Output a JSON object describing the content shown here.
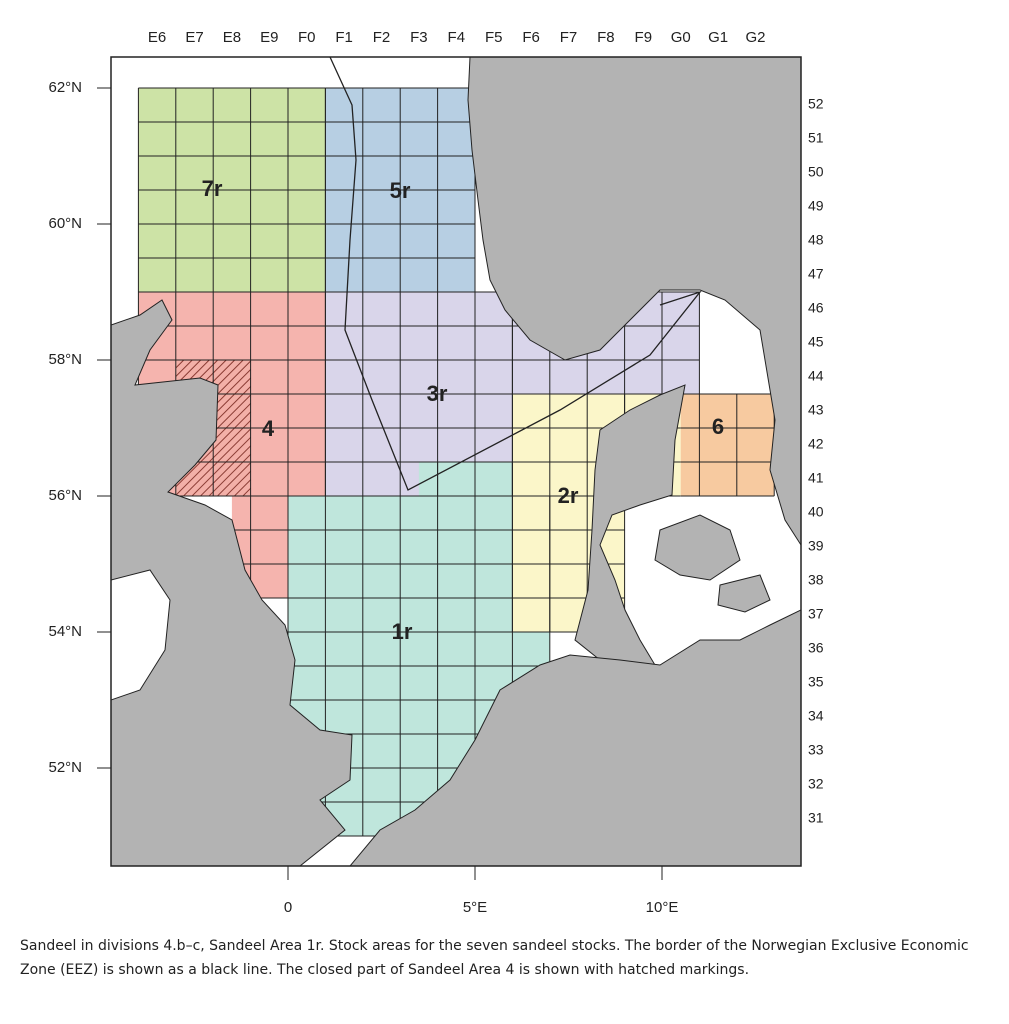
{
  "map": {
    "column_labels": [
      "E6",
      "E7",
      "E8",
      "E9",
      "F0",
      "F1",
      "F2",
      "F3",
      "F4",
      "F5",
      "F6",
      "F7",
      "F8",
      "F9",
      "G0",
      "G1",
      "G2"
    ],
    "row_labels": [
      "52",
      "51",
      "50",
      "49",
      "48",
      "47",
      "46",
      "45",
      "44",
      "43",
      "42",
      "41",
      "40",
      "39",
      "38",
      "37",
      "36",
      "35",
      "34",
      "33",
      "32",
      "31"
    ],
    "latitude_labels": [
      "62°N",
      "60°N",
      "58°N",
      "56°N",
      "54°N",
      "52°N"
    ],
    "longitude_labels": [
      "0",
      "5°E",
      "10°E"
    ],
    "area_labels": [
      "7r",
      "5r",
      "3r",
      "4",
      "2r",
      "6",
      "1r"
    ]
  },
  "caption": "Sandeel in divisions 4.b–c, Sandeel Area 1r. Stock areas for the seven sandeel stocks. The border of the Norwegian Exclusive Economic Zone (EEZ) is shown as a black line. The closed part of Sandeel Area 4 is shown with hatched markings."
}
